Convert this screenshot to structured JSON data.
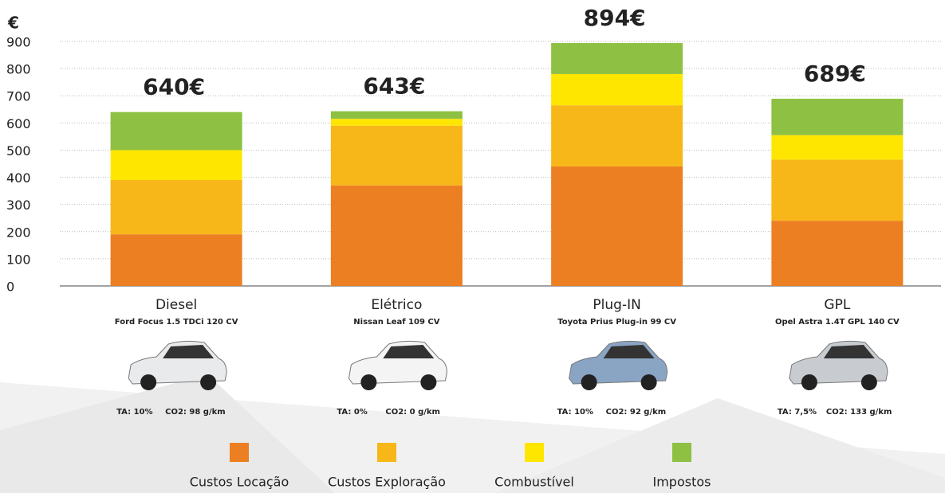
{
  "chart_data": {
    "type": "stacked_bar",
    "y_label": "€",
    "categories": [
      "Diesel",
      "Elétrico",
      "Plug-IN",
      "GPL"
    ],
    "models": [
      "Ford Focus 1.5 TDCi 120 CV",
      "Nissan Leaf 109 CV",
      "Toyota Prius Plug-in 99 CV",
      "Opel Astra 1.4T GPL 140 CV"
    ],
    "ta_labels": [
      "TA: 10%",
      "TA: 0%",
      "TA: 10%",
      "TA: 7,5%"
    ],
    "co2_labels": [
      "CO2: 98 g/km",
      "CO2: 0 g/km",
      "CO2: 92 g/km",
      "CO2: 133 g/km"
    ],
    "series": [
      {
        "name": "Custos Locação",
        "color": "#ec7f22",
        "values": [
          190,
          370,
          440,
          240
        ]
      },
      {
        "name": "Custos Exploração",
        "color": "#f7b718",
        "values": [
          200,
          220,
          225,
          225
        ]
      },
      {
        "name": "Combustível",
        "color": "#ffe600",
        "values": [
          110,
          25,
          115,
          90
        ]
      },
      {
        "name": "Impostos",
        "color": "#8ec043",
        "values": [
          140,
          28,
          114,
          134
        ]
      }
    ],
    "totals": [
      640,
      643,
      894,
      689
    ],
    "total_labels": [
      "640€",
      "643€",
      "894€",
      "689€"
    ],
    "ylim": [
      0,
      900
    ],
    "yticks": [
      0,
      100,
      200,
      300,
      400,
      500,
      600,
      700,
      800,
      900
    ],
    "grid": true
  }
}
